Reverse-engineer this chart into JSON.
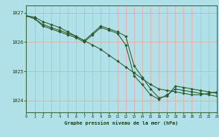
{
  "background_color": "#b0e0e8",
  "plot_bg_color": "#b0e0e8",
  "grid_color_v": "#ff9999",
  "grid_color_h": "#ff9999",
  "line_color": "#2d5a2d",
  "marker_color": "#2d5a2d",
  "xlabel": "Graphe pression niveau de la mer (hPa)",
  "ylim": [
    1023.6,
    1027.25
  ],
  "xlim": [
    0,
    23
  ],
  "yticks": [
    1024,
    1025,
    1026,
    1027
  ],
  "xticks": [
    0,
    1,
    2,
    3,
    4,
    5,
    6,
    7,
    8,
    9,
    10,
    11,
    12,
    13,
    14,
    15,
    16,
    17,
    18,
    19,
    20,
    21,
    22,
    23
  ],
  "line1": [
    1026.9,
    1026.85,
    1026.7,
    1026.6,
    1026.5,
    1026.35,
    1026.2,
    1026.05,
    1025.9,
    1025.75,
    1025.55,
    1025.35,
    1025.15,
    1024.95,
    1024.75,
    1024.55,
    1024.4,
    1024.35,
    1024.3,
    1024.25,
    1024.2,
    1024.2,
    1024.25,
    1024.3
  ],
  "line2": [
    1026.9,
    1026.8,
    1026.6,
    1026.5,
    1026.4,
    1026.3,
    1026.2,
    1026.05,
    1026.3,
    1026.55,
    1026.45,
    1026.35,
    1026.2,
    1025.2,
    1024.8,
    1024.4,
    1024.1,
    1024.15,
    1024.5,
    1024.45,
    1024.4,
    1024.35,
    1024.3,
    1024.25
  ],
  "line3": [
    1026.9,
    1026.8,
    1026.55,
    1026.45,
    1026.35,
    1026.25,
    1026.15,
    1026.0,
    1026.25,
    1026.5,
    1026.4,
    1026.3,
    1025.9,
    1024.85,
    1024.55,
    1024.2,
    1024.05,
    1024.2,
    1024.4,
    1024.35,
    1024.3,
    1024.25,
    1024.2,
    1024.15
  ],
  "figsize": [
    3.2,
    2.0
  ],
  "dpi": 100
}
